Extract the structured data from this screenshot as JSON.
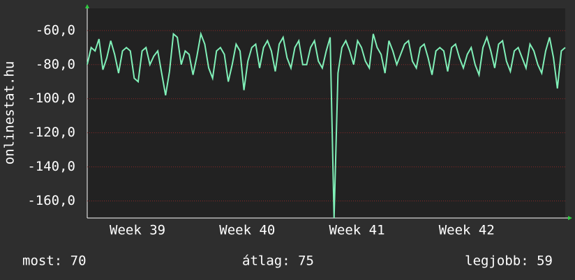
{
  "chart_data": {
    "type": "line",
    "ylabel": "onlinestat.hu",
    "x": [
      0,
      0.25,
      0.5,
      0.75,
      1,
      1.25,
      1.5,
      1.75,
      2,
      2.25,
      2.5,
      2.75,
      3,
      3.25,
      3.5,
      3.75,
      4,
      4.25,
      4.5,
      4.75,
      5,
      5.25,
      5.5,
      5.75,
      6,
      6.25,
      6.5,
      6.75,
      7,
      7.25,
      7.5,
      7.75,
      8,
      8.25,
      8.5,
      8.75,
      9,
      9.25,
      9.5,
      9.75,
      10,
      10.25,
      10.5,
      10.75,
      11,
      11.25,
      11.5,
      11.75,
      12,
      12.25,
      12.5,
      12.75,
      13,
      13.25,
      13.5,
      13.75,
      14,
      14.25,
      14.5,
      14.75,
      15,
      15.25,
      15.5,
      15.75,
      16,
      16.25,
      16.5,
      16.75,
      17,
      17.25,
      17.5,
      17.75,
      18,
      18.25,
      18.5,
      18.75,
      19,
      19.25,
      19.5,
      19.75,
      20,
      20.25,
      20.5,
      20.75,
      21,
      21.25,
      21.5,
      21.75,
      22,
      22.25,
      22.5,
      22.75,
      23,
      23.25,
      23.5,
      23.75,
      24,
      24.25,
      24.5,
      24.75,
      25,
      25.25,
      25.5,
      25.75,
      26,
      26.25,
      26.5,
      26.75,
      27,
      27.25,
      27.5,
      27.75,
      28,
      28.25,
      28.5,
      28.75,
      29,
      29.25,
      29.5,
      29.75,
      30,
      30.25,
      30.5
    ],
    "series": [
      {
        "name": "onlinestat.hu",
        "color": "#80f0b8",
        "values": [
          -80,
          -70,
          -72,
          -65,
          -83,
          -76,
          -66,
          -74,
          -85,
          -72,
          -70,
          -72,
          -88,
          -90,
          -72,
          -70,
          -80,
          -75,
          -72,
          -85,
          -98,
          -84,
          -62,
          -64,
          -80,
          -72,
          -74,
          -86,
          -75,
          -62,
          -68,
          -82,
          -88,
          -72,
          -70,
          -74,
          -90,
          -80,
          -68,
          -72,
          -95,
          -78,
          -70,
          -68,
          -82,
          -70,
          -66,
          -72,
          -84,
          -68,
          -64,
          -76,
          -82,
          -70,
          -66,
          -80,
          -80,
          -70,
          -66,
          -78,
          -82,
          -72,
          -64,
          -170,
          -85,
          -70,
          -66,
          -72,
          -80,
          -66,
          -70,
          -78,
          -82,
          -62,
          -70,
          -74,
          -85,
          -66,
          -72,
          -80,
          -74,
          -68,
          -66,
          -78,
          -82,
          -70,
          -68,
          -76,
          -86,
          -72,
          -70,
          -72,
          -84,
          -70,
          -68,
          -76,
          -82,
          -74,
          -70,
          -80,
          -86,
          -70,
          -64,
          -72,
          -82,
          -68,
          -66,
          -78,
          -84,
          -72,
          -70,
          -76,
          -82,
          -68,
          -72,
          -80,
          -85,
          -72,
          -64,
          -76,
          -94,
          -72,
          -70
        ]
      }
    ],
    "xlim": [
      0,
      30.5
    ],
    "xticks": [
      {
        "value": 3.21,
        "label": "Week 39"
      },
      {
        "value": 10.21,
        "label": "Week 40"
      },
      {
        "value": 17.21,
        "label": "Week 41"
      },
      {
        "value": 24.21,
        "label": "Week 42"
      }
    ],
    "ylim": [
      -170,
      -47
    ],
    "yticks": [
      {
        "value": -60,
        "label": "-60,0"
      },
      {
        "value": -80,
        "label": "-80,0"
      },
      {
        "value": -100,
        "label": "-100,0"
      },
      {
        "value": -120,
        "label": "-120,0"
      },
      {
        "value": -140,
        "label": "-140,0"
      },
      {
        "value": -160,
        "label": "-160,0"
      }
    ],
    "grid": true,
    "footer": [
      "most: 70",
      "átlag: 75",
      "legjobb: 59"
    ]
  }
}
